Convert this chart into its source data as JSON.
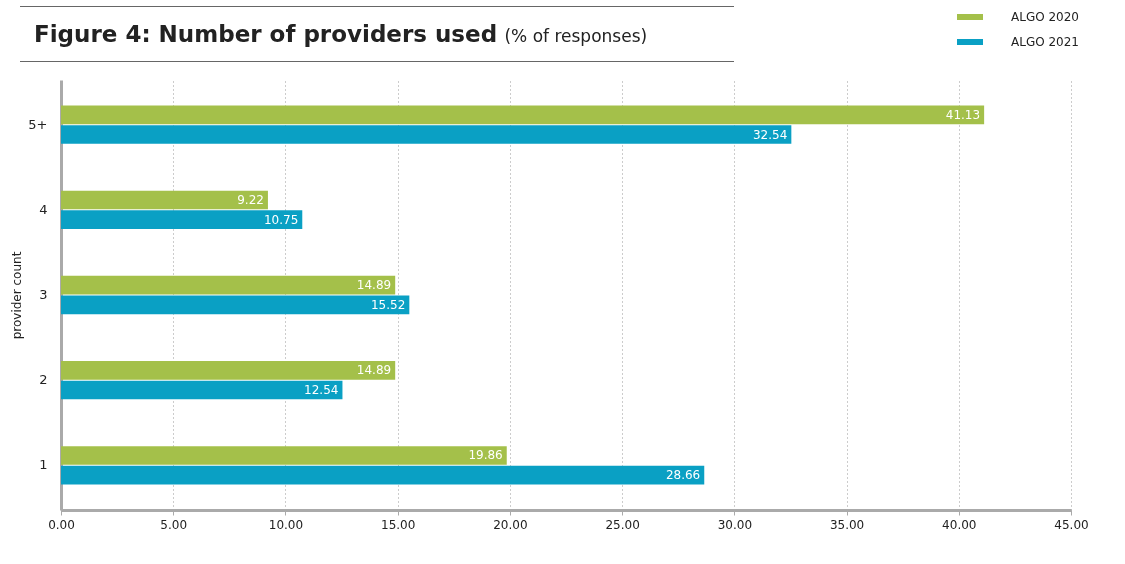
{
  "chart_data": {
    "type": "bar",
    "orientation": "horizontal",
    "title": "Figure 4: Number of providers used",
    "subtitle": "(% of responses)",
    "ylabel": "provider count",
    "categories": [
      "5+",
      "4",
      "3",
      "2",
      "1"
    ],
    "series": [
      {
        "name": "ALGO 2020",
        "color": "#a4c04a",
        "values": [
          41.13,
          9.22,
          14.89,
          14.89,
          19.86
        ]
      },
      {
        "name": "ALGO 2021",
        "color": "#0aa0c4",
        "values": [
          32.54,
          10.75,
          15.52,
          12.54,
          28.66
        ]
      }
    ],
    "xlim": [
      0,
      45
    ],
    "xticks": [
      {
        "value": 0,
        "label": "0.00"
      },
      {
        "value": 5,
        "label": "5.00"
      },
      {
        "value": 10,
        "label": "10.00"
      },
      {
        "value": 15,
        "label": "15.00"
      },
      {
        "value": 20,
        "label": "20.00"
      },
      {
        "value": 25,
        "label": "25.00"
      },
      {
        "value": 30,
        "label": "30.00"
      },
      {
        "value": 35,
        "label": "35.00"
      },
      {
        "value": 40,
        "label": "40.00"
      },
      {
        "value": 45,
        "label": "45.00"
      }
    ],
    "grid": "x",
    "legend": "top right",
    "data_labels": true
  }
}
